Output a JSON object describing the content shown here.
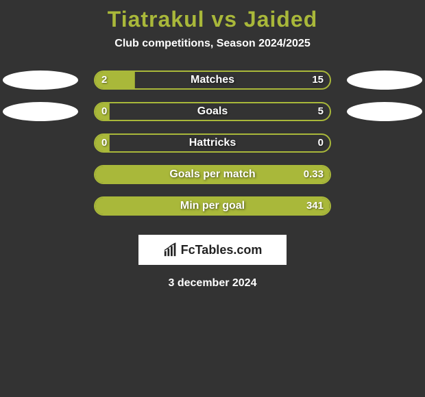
{
  "title": "Tiatrakul vs Jaided",
  "subtitle": "Club competitions, Season 2024/2025",
  "colors": {
    "background": "#333333",
    "accent": "#a9b83a",
    "text": "#ffffff",
    "avatar": "#ffffff"
  },
  "bar": {
    "track_width": 346,
    "track_height": 28,
    "border_radius": 14,
    "border_width": 2
  },
  "stats": [
    {
      "label": "Matches",
      "left_value": "2",
      "right_value": "15",
      "left_pct": 17,
      "show_avatars": true
    },
    {
      "label": "Goals",
      "left_value": "0",
      "right_value": "5",
      "left_pct": 6,
      "show_avatars": true
    },
    {
      "label": "Hattricks",
      "left_value": "0",
      "right_value": "0",
      "left_pct": 6,
      "show_avatars": false
    },
    {
      "label": "Goals per match",
      "left_value": "",
      "right_value": "0.33",
      "left_pct": 100,
      "show_avatars": false
    },
    {
      "label": "Min per goal",
      "left_value": "",
      "right_value": "341",
      "left_pct": 100,
      "show_avatars": false
    }
  ],
  "branding": "FcTables.com",
  "date": "3 december 2024"
}
